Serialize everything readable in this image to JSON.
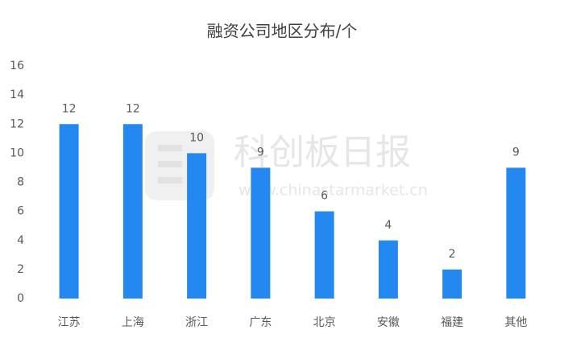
{
  "chart_data": {
    "type": "bar",
    "title": "融资公司地区分布/个",
    "categories": [
      "江苏",
      "上海",
      "浙江",
      "广东",
      "北京",
      "安徽",
      "福建",
      "其他"
    ],
    "values": [
      12,
      12,
      10,
      9,
      6,
      4,
      2,
      9
    ],
    "color": "#2388f0",
    "ylim": [
      0,
      16
    ],
    "yticks": [
      0,
      2,
      4,
      6,
      8,
      10,
      12,
      14,
      16
    ],
    "grid": false,
    "watermark": "科创板日报",
    "watermark_url": "www.chinastarmarket.cn"
  }
}
